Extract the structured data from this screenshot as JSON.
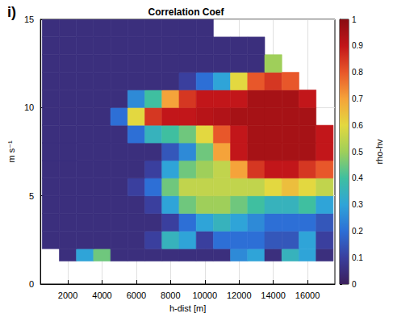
{
  "chart_data": {
    "type": "heatmap",
    "title": "Correlation Coef",
    "panel": "i)",
    "x_label": "h-dist [m]",
    "y_label": "m s⁻¹",
    "xlim": [
      400,
      17600
    ],
    "xticks": [
      2000,
      4000,
      6000,
      8000,
      10000,
      12000,
      14000,
      16000
    ],
    "ylim": [
      0,
      15
    ],
    "yticks": [
      0,
      5,
      10,
      15
    ],
    "grid": true,
    "x_edges": [
      500,
      1500,
      2500,
      3500,
      4500,
      5500,
      6500,
      7500,
      8500,
      9500,
      10500,
      11500,
      12500,
      13500,
      14500,
      15500,
      16500,
      17500
    ],
    "y_edges": [
      1.3,
      2,
      3,
      4,
      5,
      6,
      7,
      8,
      9,
      10,
      11,
      12,
      13,
      14,
      15
    ],
    "cells": [
      [
        null,
        0.05,
        0.3,
        0.45,
        0.05,
        0.05,
        0.05,
        0.05,
        0.05,
        0.05,
        0.05,
        0.25,
        0.3,
        0.05,
        0.35,
        0.3,
        0.05
      ],
      [
        0.05,
        0.05,
        0.05,
        0.05,
        0.05,
        0.05,
        0.1,
        0.35,
        0.3,
        0.1,
        0.2,
        0.2,
        0.2,
        0.15,
        0.15,
        0.3,
        0.1
      ],
      [
        0.05,
        0.05,
        0.05,
        0.05,
        0.05,
        0.05,
        0.05,
        0.1,
        0.2,
        0.3,
        0.35,
        0.3,
        0.25,
        0.2,
        0.2,
        0.2,
        0.15
      ],
      [
        0.05,
        0.05,
        0.05,
        0.05,
        0.05,
        0.05,
        0.1,
        0.3,
        0.45,
        0.5,
        0.5,
        0.45,
        0.4,
        0.35,
        0.35,
        0.4,
        0.3
      ],
      [
        0.05,
        0.05,
        0.05,
        0.05,
        0.05,
        0.1,
        0.2,
        0.45,
        0.55,
        0.55,
        0.55,
        0.55,
        0.55,
        0.6,
        0.65,
        0.6,
        0.55
      ],
      [
        0.05,
        0.05,
        0.05,
        0.05,
        0.05,
        0.05,
        0.1,
        0.3,
        0.45,
        0.5,
        0.55,
        0.7,
        0.85,
        0.9,
        0.9,
        0.85,
        0.8
      ],
      [
        0.05,
        0.05,
        0.05,
        0.05,
        0.05,
        0.05,
        0.05,
        0.15,
        0.25,
        0.45,
        0.7,
        0.9,
        0.95,
        0.95,
        0.95,
        0.95,
        0.9
      ],
      [
        0.05,
        0.05,
        0.05,
        0.05,
        0.05,
        0.2,
        0.35,
        0.4,
        0.45,
        0.6,
        0.8,
        0.9,
        0.95,
        0.95,
        0.95,
        0.95,
        0.9
      ],
      [
        0.05,
        0.05,
        0.05,
        0.05,
        0.2,
        0.6,
        0.85,
        0.9,
        0.9,
        0.92,
        0.93,
        0.95,
        0.95,
        0.95,
        0.95,
        0.95,
        null
      ],
      [
        0.05,
        0.05,
        0.05,
        0.05,
        0.05,
        0.25,
        0.4,
        0.7,
        0.85,
        0.9,
        0.9,
        0.9,
        0.95,
        0.95,
        0.95,
        0.9,
        null
      ],
      [
        0.05,
        0.05,
        0.05,
        0.05,
        0.05,
        0.05,
        0.05,
        0.05,
        0.1,
        0.2,
        0.3,
        0.6,
        0.8,
        0.85,
        0.8,
        null,
        null
      ],
      [
        0.05,
        0.05,
        0.05,
        0.05,
        0.05,
        0.05,
        0.05,
        0.05,
        0.05,
        0.05,
        0.05,
        0.05,
        0.05,
        0.5,
        null,
        null,
        null
      ],
      [
        0.05,
        0.05,
        0.05,
        0.05,
        0.05,
        0.05,
        0.05,
        0.05,
        0.05,
        0.05,
        0.05,
        0.05,
        0.05,
        null,
        null,
        null,
        null
      ],
      [
        0.05,
        0.05,
        0.05,
        0.05,
        0.05,
        0.05,
        0.05,
        0.05,
        0.05,
        0.05,
        null,
        null,
        null,
        null,
        null,
        null,
        null
      ]
    ],
    "colorbar": {
      "label": "rho-hv",
      "range": [
        0,
        1
      ],
      "ticks": [
        0,
        0.1,
        0.2,
        0.3,
        0.4,
        0.5,
        0.6,
        0.7,
        0.8,
        0.9,
        1
      ]
    }
  }
}
